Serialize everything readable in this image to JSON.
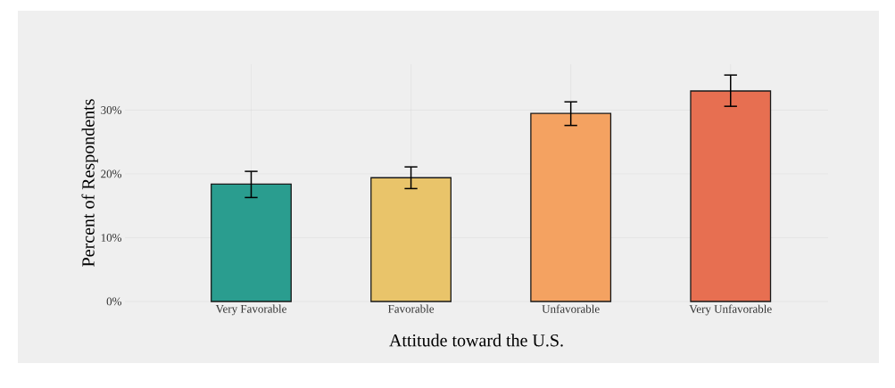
{
  "chart_data": {
    "type": "bar",
    "xlabel": "Attitude toward the U.S.",
    "ylabel": "Percent of Respondents",
    "categories": [
      "Very Favorable",
      "Favorable",
      "Unfavorable",
      "Very Unfavorable"
    ],
    "values": [
      18.4,
      19.4,
      29.5,
      33.0
    ],
    "errors": [
      [
        16.3,
        20.4
      ],
      [
        17.7,
        21.1
      ],
      [
        27.6,
        31.3
      ],
      [
        30.6,
        35.5
      ]
    ],
    "colors": [
      "#2a9d8f",
      "#e9c46a",
      "#f4a261",
      "#e76f51"
    ],
    "ylim": [
      0,
      37.2
    ],
    "yticks": [
      {
        "value": 0,
        "label": "0%"
      },
      {
        "value": 10,
        "label": "10%"
      },
      {
        "value": 20,
        "label": "20%"
      },
      {
        "value": 30,
        "label": "30%"
      }
    ],
    "grid": true
  }
}
